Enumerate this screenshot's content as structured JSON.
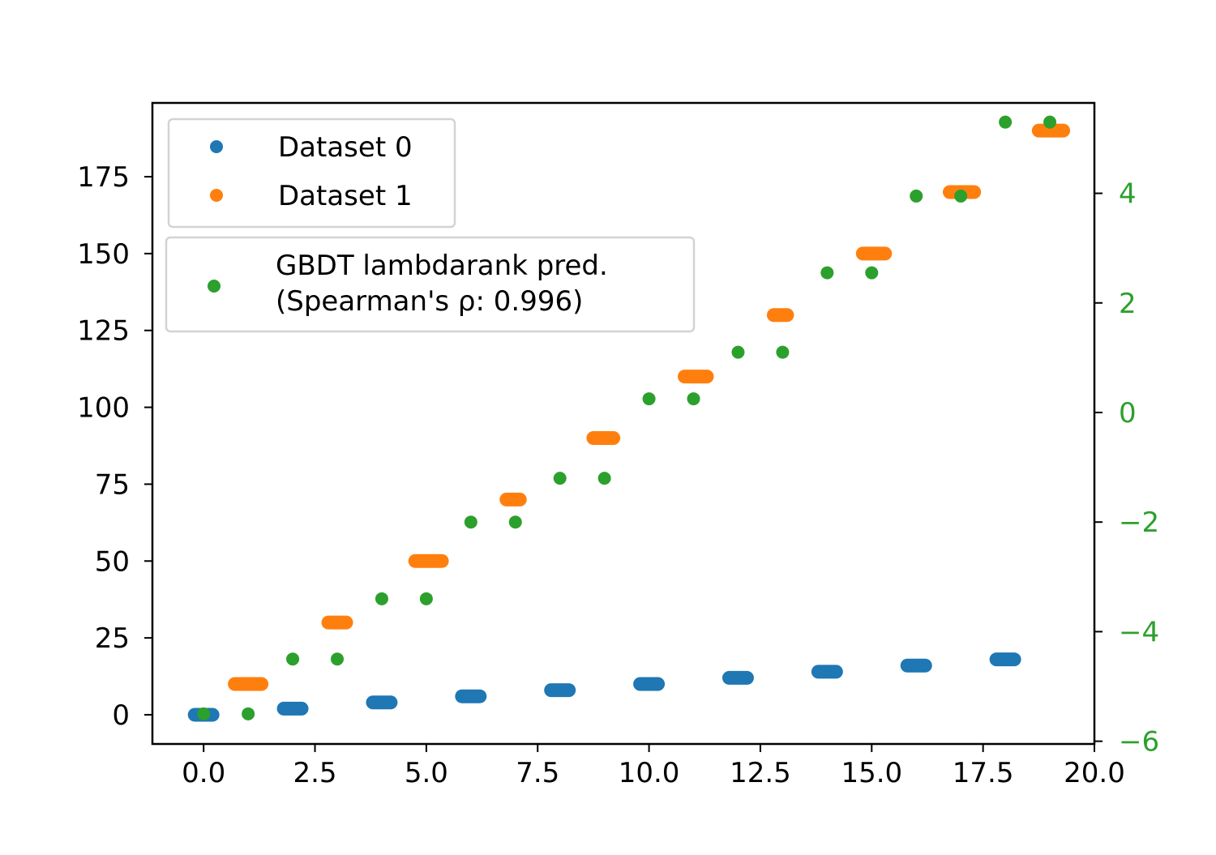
{
  "chart_data": {
    "type": "scatter",
    "title": "",
    "xlabel": "",
    "ylabel": "",
    "xlim": [
      -1.15,
      20.0
    ],
    "ylim": [
      -9.5,
      199.0
    ],
    "y2lim": [
      -6.05,
      5.65
    ],
    "x_ticks": [
      0.0,
      2.5,
      5.0,
      7.5,
      10.0,
      12.5,
      15.0,
      17.5,
      20.0
    ],
    "x_tick_labels": [
      "0.0",
      "2.5",
      "5.0",
      "7.5",
      "10.0",
      "12.5",
      "15.0",
      "17.5",
      "20.0"
    ],
    "y_ticks": [
      0,
      25,
      50,
      75,
      100,
      125,
      150,
      175
    ],
    "y_tick_labels": [
      "0",
      "25",
      "50",
      "75",
      "100",
      "125",
      "150",
      "175"
    ],
    "y2_ticks": [
      -6,
      -4,
      -2,
      0,
      2,
      4
    ],
    "y2_tick_labels": [
      "−6",
      "−4",
      "−2",
      "0",
      "2",
      "4"
    ],
    "grid": false,
    "legend_placement": "upper-left",
    "series": [
      {
        "name": "Dataset 0",
        "color": "#1f77b4",
        "axis": "left",
        "groups": [
          {
            "x": [
              -0.2,
              0.2
            ],
            "y": 0
          },
          {
            "x": [
              1.8,
              2.2
            ],
            "y": 2
          },
          {
            "x": [
              3.8,
              4.2
            ],
            "y": 4
          },
          {
            "x": [
              5.8,
              6.2
            ],
            "y": 6
          },
          {
            "x": [
              7.8,
              8.2
            ],
            "y": 8
          },
          {
            "x": [
              9.8,
              10.2
            ],
            "y": 10
          },
          {
            "x": [
              11.8,
              12.2
            ],
            "y": 12
          },
          {
            "x": [
              13.8,
              14.2
            ],
            "y": 14
          },
          {
            "x": [
              15.8,
              16.2
            ],
            "y": 16
          },
          {
            "x": [
              17.8,
              18.2
            ],
            "y": 18
          }
        ]
      },
      {
        "name": "Dataset 1",
        "color": "#ff7f0e",
        "axis": "left",
        "groups": [
          {
            "x": [
              0.7,
              1.3
            ],
            "y": 10
          },
          {
            "x": [
              2.8,
              3.2
            ],
            "y": 30
          },
          {
            "x": [
              4.75,
              5.35
            ],
            "y": 50
          },
          {
            "x": [
              6.8,
              7.1
            ],
            "y": 70
          },
          {
            "x": [
              8.75,
              9.2
            ],
            "y": 90
          },
          {
            "x": [
              10.8,
              11.3
            ],
            "y": 110
          },
          {
            "x": [
              12.8,
              13.1
            ],
            "y": 130
          },
          {
            "x": [
              14.8,
              15.3
            ],
            "y": 150
          },
          {
            "x": [
              16.75,
              17.3
            ],
            "y": 170
          },
          {
            "x": [
              18.75,
              19.3
            ],
            "y": 190
          }
        ]
      },
      {
        "name": "GBDT lambdarank pred.\n(Spearman's ρ: 0.996)",
        "color": "#2ca02c",
        "axis": "right",
        "points": [
          {
            "x": 0,
            "y": -5.5
          },
          {
            "x": 1,
            "y": -5.5
          },
          {
            "x": 2,
            "y": -4.5
          },
          {
            "x": 3,
            "y": -4.5
          },
          {
            "x": 4,
            "y": -3.4
          },
          {
            "x": 5,
            "y": -3.4
          },
          {
            "x": 6,
            "y": -2.0
          },
          {
            "x": 7,
            "y": -2.0
          },
          {
            "x": 8,
            "y": -1.2
          },
          {
            "x": 9,
            "y": -1.2
          },
          {
            "x": 10,
            "y": 0.25
          },
          {
            "x": 11,
            "y": 0.25
          },
          {
            "x": 12,
            "y": 1.1
          },
          {
            "x": 13,
            "y": 1.1
          },
          {
            "x": 14,
            "y": 2.55
          },
          {
            "x": 15,
            "y": 2.55
          },
          {
            "x": 16,
            "y": 3.95
          },
          {
            "x": 17,
            "y": 3.95
          },
          {
            "x": 18,
            "y": 5.3
          },
          {
            "x": 19,
            "y": 5.3
          }
        ]
      }
    ],
    "legends": [
      {
        "entries": [
          "Dataset 0",
          "Dataset 1"
        ]
      },
      {
        "entries": [
          "GBDT lambdarank pred.\n(Spearman's ρ: 0.996)"
        ]
      }
    ]
  }
}
